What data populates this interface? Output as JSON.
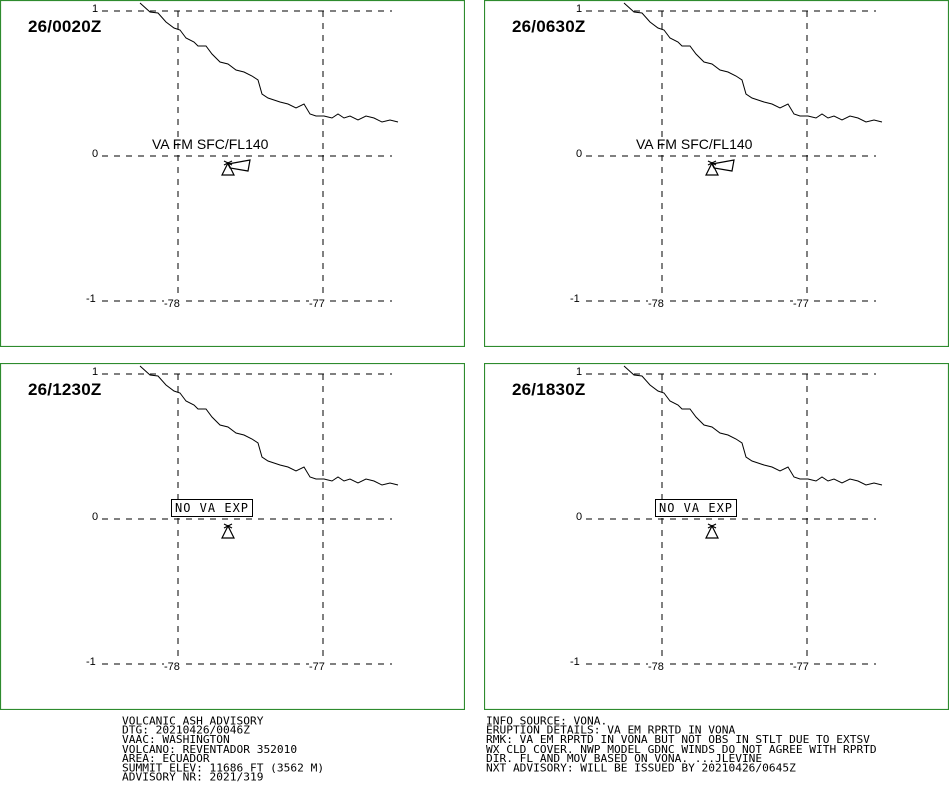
{
  "panels": [
    {
      "time": "26/0020Z",
      "ash_label": "VA FM SFC/FL140",
      "ash_label_type": "plain",
      "has_ash_polygon": true
    },
    {
      "time": "26/0630Z",
      "ash_label": "VA FM SFC/FL140",
      "ash_label_type": "plain",
      "has_ash_polygon": true
    },
    {
      "time": "26/1230Z",
      "ash_label": "NO VA EXP",
      "ash_label_type": "boxed",
      "has_ash_polygon": false
    },
    {
      "time": "26/1830Z",
      "ash_label": "NO VA EXP",
      "ash_label_type": "boxed",
      "has_ash_polygon": false
    }
  ],
  "axes": {
    "lat_ticks": [
      "1",
      "0",
      "-1"
    ],
    "lon_ticks": [
      "-78",
      "-77"
    ]
  },
  "advisory_left": [
    "VOLCANIC ASH ADVISORY",
    "DTG: 20210426/0046Z",
    "VAAC: WASHINGTON",
    "VOLCANO: REVENTADOR 352010",
    "AREA: ECUADOR",
    "SUMMIT ELEV: 11686 FT (3562 M)",
    "ADVISORY NR: 2021/319"
  ],
  "advisory_right": [
    "INFO SOURCE: VONA.",
    "ERUPTION DETAILS: VA EM RPRTD IN VONA",
    "RMK: VA EM RPRTD IN VONA BUT NOT OBS IN STLT DUE TO EXTSV",
    "WX CLD COVER. NWP MODEL GDNC WINDS DO NOT AGREE WITH RPRTD",
    "DIR. FL AND MOV BASED ON VONA. ...JLEVINE",
    "NXT ADVISORY: WILL BE ISSUED BY 20210426/0645Z"
  ],
  "colors": {
    "frame": "#2e8b2e",
    "lines": "#000000"
  }
}
